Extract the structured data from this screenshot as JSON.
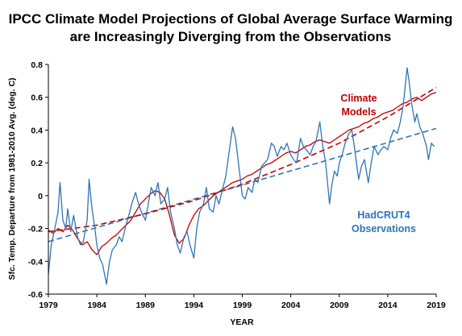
{
  "chart_data": {
    "type": "line",
    "title": "IPCC Climate Model Projections of Global Average Surface Warming",
    "subtitle": "are Increasingly Diverging from the Observations",
    "xlabel": "YEAR",
    "ylabel": "Sfc. Temp. Departure from 1981-2010 Avg. (deg. C)",
    "xlim": [
      1979,
      2019
    ],
    "ylim": [
      -0.6,
      0.8
    ],
    "xticks": [
      "1979",
      "1984",
      "1989",
      "1994",
      "1999",
      "2004",
      "2009",
      "2014",
      "2019"
    ],
    "yticks": [
      "-0.6",
      "-0.4",
      "-0.2",
      "0",
      "0.2",
      "0.4",
      "0.6",
      "0.8"
    ],
    "grid": false,
    "annotations": [
      {
        "text_line1": "Climate",
        "text_line2": "Models",
        "color": "#c00000"
      },
      {
        "text_line1": "HadCRUT4",
        "text_line2": "Observations",
        "color": "#2e75b6"
      }
    ],
    "series": [
      {
        "name": "Climate Models",
        "color": "#c00000",
        "style": "solid",
        "points": [
          [
            1979.0,
            -0.21
          ],
          [
            1979.5,
            -0.23
          ],
          [
            1980.0,
            -0.2
          ],
          [
            1980.5,
            -0.22
          ],
          [
            1981.0,
            -0.18
          ],
          [
            1981.5,
            -0.21
          ],
          [
            1982.0,
            -0.26
          ],
          [
            1982.5,
            -0.3
          ],
          [
            1983.0,
            -0.28
          ],
          [
            1983.5,
            -0.33
          ],
          [
            1984.0,
            -0.36
          ],
          [
            1984.5,
            -0.31
          ],
          [
            1985.0,
            -0.29
          ],
          [
            1985.5,
            -0.26
          ],
          [
            1986.0,
            -0.24
          ],
          [
            1986.5,
            -0.21
          ],
          [
            1987.0,
            -0.18
          ],
          [
            1987.5,
            -0.15
          ],
          [
            1988.0,
            -0.1
          ],
          [
            1988.5,
            -0.05
          ],
          [
            1989.0,
            -0.02
          ],
          [
            1989.5,
            0.01
          ],
          [
            1990.0,
            0.03
          ],
          [
            1990.5,
            0.02
          ],
          [
            1991.0,
            -0.02
          ],
          [
            1991.5,
            -0.12
          ],
          [
            1992.0,
            -0.24
          ],
          [
            1992.5,
            -0.29
          ],
          [
            1993.0,
            -0.26
          ],
          [
            1993.5,
            -0.18
          ],
          [
            1994.0,
            -0.12
          ],
          [
            1994.5,
            -0.08
          ],
          [
            1995.0,
            -0.06
          ],
          [
            1995.5,
            -0.03
          ],
          [
            1996.0,
            0.0
          ],
          [
            1996.5,
            0.02
          ],
          [
            1997.0,
            0.04
          ],
          [
            1997.5,
            0.06
          ],
          [
            1998.0,
            0.08
          ],
          [
            1998.5,
            0.09
          ],
          [
            1999.0,
            0.1
          ],
          [
            1999.5,
            0.12
          ],
          [
            2000.0,
            0.13
          ],
          [
            2000.5,
            0.15
          ],
          [
            2001.0,
            0.17
          ],
          [
            2001.5,
            0.19
          ],
          [
            2002.0,
            0.2
          ],
          [
            2002.5,
            0.22
          ],
          [
            2003.0,
            0.24
          ],
          [
            2003.5,
            0.26
          ],
          [
            2004.0,
            0.27
          ],
          [
            2004.5,
            0.26
          ],
          [
            2005.0,
            0.28
          ],
          [
            2005.5,
            0.3
          ],
          [
            2006.0,
            0.31
          ],
          [
            2006.5,
            0.33
          ],
          [
            2007.0,
            0.34
          ],
          [
            2007.5,
            0.33
          ],
          [
            2008.0,
            0.32
          ],
          [
            2008.5,
            0.34
          ],
          [
            2009.0,
            0.36
          ],
          [
            2009.5,
            0.38
          ],
          [
            2010.0,
            0.4
          ],
          [
            2010.5,
            0.41
          ],
          [
            2011.0,
            0.42
          ],
          [
            2011.5,
            0.44
          ],
          [
            2012.0,
            0.45
          ],
          [
            2012.5,
            0.47
          ],
          [
            2013.0,
            0.48
          ],
          [
            2013.5,
            0.5
          ],
          [
            2014.0,
            0.51
          ],
          [
            2014.5,
            0.52
          ],
          [
            2015.0,
            0.54
          ],
          [
            2015.5,
            0.56
          ],
          [
            2016.0,
            0.57
          ],
          [
            2016.5,
            0.59
          ],
          [
            2017.0,
            0.6
          ],
          [
            2017.5,
            0.58
          ],
          [
            2018.0,
            0.6
          ],
          [
            2018.5,
            0.62
          ],
          [
            2019.0,
            0.63
          ]
        ]
      },
      {
        "name": "HadCRUT4 Observations",
        "color": "#2e75b6",
        "style": "solid",
        "points": [
          [
            1979.0,
            -0.48
          ],
          [
            1979.3,
            -0.3
          ],
          [
            1979.6,
            -0.22
          ],
          [
            1980.0,
            -0.1
          ],
          [
            1980.2,
            0.08
          ],
          [
            1980.5,
            -0.15
          ],
          [
            1980.8,
            -0.2
          ],
          [
            1981.0,
            -0.08
          ],
          [
            1981.3,
            -0.22
          ],
          [
            1981.6,
            -0.12
          ],
          [
            1982.0,
            -0.25
          ],
          [
            1982.3,
            -0.3
          ],
          [
            1982.6,
            -0.28
          ],
          [
            1983.0,
            -0.15
          ],
          [
            1983.2,
            0.1
          ],
          [
            1983.5,
            -0.08
          ],
          [
            1983.8,
            -0.2
          ],
          [
            1984.0,
            -0.3
          ],
          [
            1984.3,
            -0.38
          ],
          [
            1984.6,
            -0.42
          ],
          [
            1985.0,
            -0.54
          ],
          [
            1985.3,
            -0.4
          ],
          [
            1985.6,
            -0.33
          ],
          [
            1986.0,
            -0.3
          ],
          [
            1986.3,
            -0.25
          ],
          [
            1986.6,
            -0.28
          ],
          [
            1987.0,
            -0.18
          ],
          [
            1987.3,
            -0.12
          ],
          [
            1987.6,
            -0.05
          ],
          [
            1988.0,
            0.02
          ],
          [
            1988.3,
            -0.05
          ],
          [
            1988.6,
            -0.1
          ],
          [
            1989.0,
            -0.15
          ],
          [
            1989.3,
            -0.05
          ],
          [
            1989.6,
            0.05
          ],
          [
            1990.0,
            0.0
          ],
          [
            1990.3,
            0.08
          ],
          [
            1990.6,
            -0.05
          ],
          [
            1991.0,
            -0.02
          ],
          [
            1991.3,
            0.05
          ],
          [
            1991.6,
            -0.1
          ],
          [
            1992.0,
            -0.2
          ],
          [
            1992.3,
            -0.3
          ],
          [
            1992.6,
            -0.35
          ],
          [
            1993.0,
            -0.25
          ],
          [
            1993.3,
            -0.22
          ],
          [
            1993.6,
            -0.3
          ],
          [
            1994.0,
            -0.38
          ],
          [
            1994.3,
            -0.2
          ],
          [
            1994.6,
            -0.1
          ],
          [
            1995.0,
            -0.05
          ],
          [
            1995.3,
            0.05
          ],
          [
            1995.6,
            -0.08
          ],
          [
            1996.0,
            -0.1
          ],
          [
            1996.3,
            0.0
          ],
          [
            1996.6,
            -0.05
          ],
          [
            1997.0,
            0.05
          ],
          [
            1997.3,
            0.12
          ],
          [
            1997.6,
            0.25
          ],
          [
            1998.0,
            0.42
          ],
          [
            1998.3,
            0.35
          ],
          [
            1998.6,
            0.2
          ],
          [
            1999.0,
            0.0
          ],
          [
            1999.3,
            -0.02
          ],
          [
            1999.6,
            0.05
          ],
          [
            2000.0,
            0.02
          ],
          [
            2000.3,
            0.1
          ],
          [
            2000.6,
            0.08
          ],
          [
            2001.0,
            0.18
          ],
          [
            2001.3,
            0.2
          ],
          [
            2001.6,
            0.22
          ],
          [
            2002.0,
            0.32
          ],
          [
            2002.3,
            0.3
          ],
          [
            2002.6,
            0.24
          ],
          [
            2003.0,
            0.3
          ],
          [
            2003.3,
            0.28
          ],
          [
            2003.6,
            0.32
          ],
          [
            2004.0,
            0.25
          ],
          [
            2004.3,
            0.22
          ],
          [
            2004.6,
            0.2
          ],
          [
            2005.0,
            0.35
          ],
          [
            2005.3,
            0.3
          ],
          [
            2005.6,
            0.28
          ],
          [
            2006.0,
            0.25
          ],
          [
            2006.3,
            0.3
          ],
          [
            2006.6,
            0.33
          ],
          [
            2007.0,
            0.45
          ],
          [
            2007.3,
            0.3
          ],
          [
            2007.6,
            0.2
          ],
          [
            2008.0,
            -0.05
          ],
          [
            2008.2,
            0.05
          ],
          [
            2008.5,
            0.15
          ],
          [
            2008.8,
            0.12
          ],
          [
            2009.0,
            0.2
          ],
          [
            2009.3,
            0.25
          ],
          [
            2009.6,
            0.32
          ],
          [
            2010.0,
            0.38
          ],
          [
            2010.3,
            0.4
          ],
          [
            2010.6,
            0.28
          ],
          [
            2011.0,
            0.1
          ],
          [
            2011.3,
            0.18
          ],
          [
            2011.6,
            0.22
          ],
          [
            2012.0,
            0.08
          ],
          [
            2012.3,
            0.2
          ],
          [
            2012.6,
            0.3
          ],
          [
            2013.0,
            0.25
          ],
          [
            2013.3,
            0.28
          ],
          [
            2013.6,
            0.3
          ],
          [
            2014.0,
            0.28
          ],
          [
            2014.3,
            0.35
          ],
          [
            2014.6,
            0.4
          ],
          [
            2015.0,
            0.38
          ],
          [
            2015.3,
            0.45
          ],
          [
            2015.6,
            0.55
          ],
          [
            2016.0,
            0.78
          ],
          [
            2016.2,
            0.7
          ],
          [
            2016.5,
            0.55
          ],
          [
            2016.8,
            0.45
          ],
          [
            2017.0,
            0.5
          ],
          [
            2017.3,
            0.42
          ],
          [
            2017.6,
            0.38
          ],
          [
            2018.0,
            0.3
          ],
          [
            2018.2,
            0.22
          ],
          [
            2018.5,
            0.32
          ],
          [
            2018.8,
            0.3
          ]
        ]
      },
      {
        "name": "Climate Models trend",
        "color": "#c00000",
        "style": "dashed",
        "points": [
          [
            1979.0,
            -0.22
          ],
          [
            1984.0,
            -0.18
          ],
          [
            1989.0,
            -0.11
          ],
          [
            1994.0,
            -0.03
          ],
          [
            1999.0,
            0.07
          ],
          [
            2004.0,
            0.19
          ],
          [
            2009.0,
            0.32
          ],
          [
            2014.0,
            0.48
          ],
          [
            2019.0,
            0.66
          ]
        ]
      },
      {
        "name": "HadCRUT4 Observations trend",
        "color": "#2e75b6",
        "style": "dashed",
        "points": [
          [
            1979.0,
            -0.28
          ],
          [
            2019.0,
            0.41
          ]
        ]
      }
    ]
  }
}
